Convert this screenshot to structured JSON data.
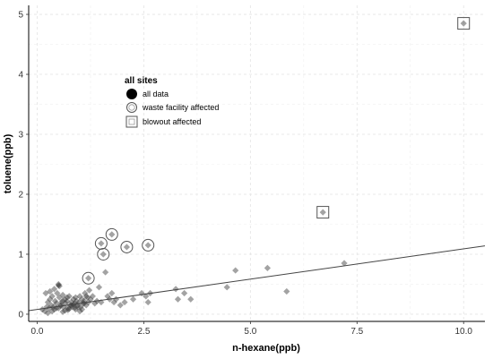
{
  "chart_data": {
    "type": "scatter",
    "xlabel": "n-hexane(ppb)",
    "ylabel": "toluene(ppb)",
    "xlim": [
      -0.2,
      10.5
    ],
    "ylim": [
      -0.12,
      5.15
    ],
    "xticks": [
      0,
      2.5,
      5,
      7.5,
      10
    ],
    "xtick_labels": [
      "0.0",
      "2.5",
      "5.0",
      "7.5",
      "10.0"
    ],
    "yticks": [
      0,
      1,
      2,
      3,
      4,
      5
    ],
    "ytick_labels": [
      "0",
      "1",
      "2",
      "3",
      "4",
      "5"
    ],
    "grid": true,
    "legend": {
      "title": "all sites",
      "placement": "top-left",
      "entries": [
        {
          "label": "all data",
          "marker": "filled-circle"
        },
        {
          "label": "waste facility affected",
          "marker": "open-circle"
        },
        {
          "label": "blowout affected",
          "marker": "open-square"
        }
      ]
    },
    "series": [
      {
        "name": "all data",
        "marker": "diamond",
        "color": "#333333",
        "opacity": 0.45,
        "x": [
          0.12,
          0.18,
          0.22,
          0.25,
          0.28,
          0.3,
          0.33,
          0.35,
          0.38,
          0.4,
          0.42,
          0.45,
          0.47,
          0.5,
          0.52,
          0.55,
          0.57,
          0.6,
          0.62,
          0.65,
          0.67,
          0.7,
          0.72,
          0.75,
          0.78,
          0.8,
          0.82,
          0.85,
          0.88,
          0.9,
          0.92,
          0.95,
          0.98,
          1.0,
          1.02,
          1.05,
          1.08,
          1.1,
          1.12,
          1.15,
          1.18,
          1.2,
          1.22,
          1.25,
          1.3,
          1.35,
          1.4,
          1.45,
          1.5,
          0.2,
          0.3,
          0.4,
          0.5,
          0.6,
          0.7,
          0.8,
          0.9,
          1.0,
          1.1,
          0.35,
          0.45,
          0.55,
          0.65,
          0.75,
          0.85,
          0.95,
          1.05,
          0.5,
          0.52,
          0.25,
          0.6,
          0.72,
          0.88,
          1.15,
          1.6,
          1.65,
          1.7,
          1.75,
          1.8,
          1.85,
          1.95,
          2.05,
          2.25,
          2.45,
          2.55,
          2.6,
          2.65,
          3.25,
          3.3,
          3.45,
          3.6,
          4.45,
          4.65,
          5.4,
          5.85,
          7.2,
          1.2,
          1.55,
          1.5,
          1.75,
          2.1,
          2.6,
          6.7,
          10.0
        ],
        "y": [
          0.08,
          0.05,
          0.12,
          0.2,
          0.1,
          0.25,
          0.15,
          0.3,
          0.12,
          0.08,
          0.22,
          0.18,
          0.35,
          0.1,
          0.28,
          0.15,
          0.2,
          0.32,
          0.12,
          0.25,
          0.18,
          0.22,
          0.1,
          0.3,
          0.15,
          0.2,
          0.12,
          0.25,
          0.18,
          0.28,
          0.22,
          0.15,
          0.2,
          0.3,
          0.12,
          0.25,
          0.18,
          0.22,
          0.35,
          0.15,
          0.28,
          0.2,
          0.4,
          0.25,
          0.3,
          0.18,
          0.22,
          0.45,
          0.2,
          0.35,
          0.38,
          0.42,
          0.48,
          0.22,
          0.28,
          0.15,
          0.08,
          0.05,
          0.18,
          0.05,
          0.1,
          0.14,
          0.06,
          0.09,
          0.16,
          0.12,
          0.08,
          0.5,
          0.47,
          0.02,
          0.04,
          0.07,
          0.11,
          0.3,
          0.7,
          0.3,
          0.25,
          0.35,
          0.2,
          0.25,
          0.15,
          0.2,
          0.25,
          0.35,
          0.3,
          0.2,
          0.35,
          0.42,
          0.25,
          0.35,
          0.25,
          0.45,
          0.73,
          0.77,
          0.38,
          0.85,
          0.6,
          1.0,
          1.18,
          1.33,
          1.12,
          1.15,
          1.7,
          4.85
        ]
      },
      {
        "name": "waste facility affected",
        "marker": "open-circle",
        "x": [
          1.2,
          1.55,
          1.5,
          1.75,
          2.1,
          2.6
        ],
        "y": [
          0.6,
          1.0,
          1.18,
          1.33,
          1.12,
          1.15
        ]
      },
      {
        "name": "blowout affected",
        "marker": "open-square",
        "x": [
          6.7,
          10.0
        ],
        "y": [
          1.7,
          4.85
        ]
      }
    ],
    "trend_line": {
      "x": [
        -0.2,
        10.5
      ],
      "y": [
        0.06,
        1.14
      ]
    }
  }
}
